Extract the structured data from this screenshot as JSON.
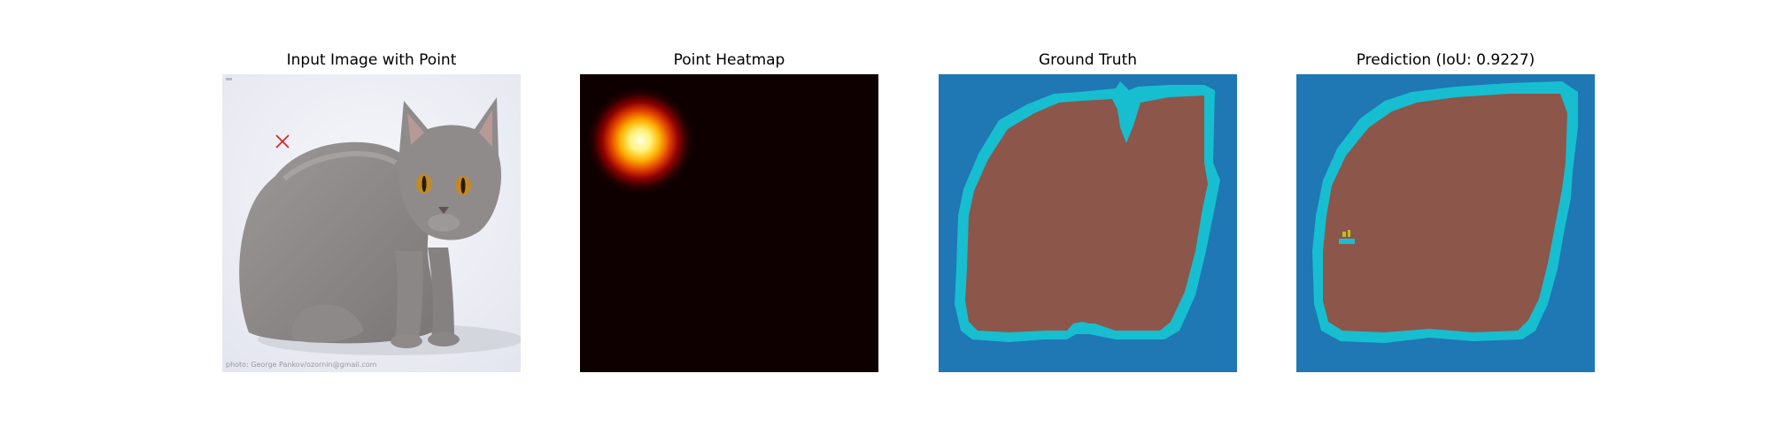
{
  "panels": [
    {
      "title": "Input Image with Point"
    },
    {
      "title": "Point Heatmap"
    },
    {
      "title": "Ground Truth"
    },
    {
      "title": "Prediction (IoU: 0.9227)"
    }
  ],
  "input_image": {
    "watermark": "photo: George Pankov/ozornin@gmail.com",
    "point_marker": "x-marker",
    "marker_color": "#d62728",
    "background_color": "#eef0f6",
    "cat_color": "#8f8c8c"
  },
  "heatmap": {
    "background_color": "#0e0000",
    "peak_color": "#ffffd8"
  },
  "segmentation": {
    "background_color": "#1f77b4",
    "foreground_color": "#8c564b",
    "boundary_color": "#17becf"
  },
  "prediction": {
    "iou": 0.9227
  }
}
